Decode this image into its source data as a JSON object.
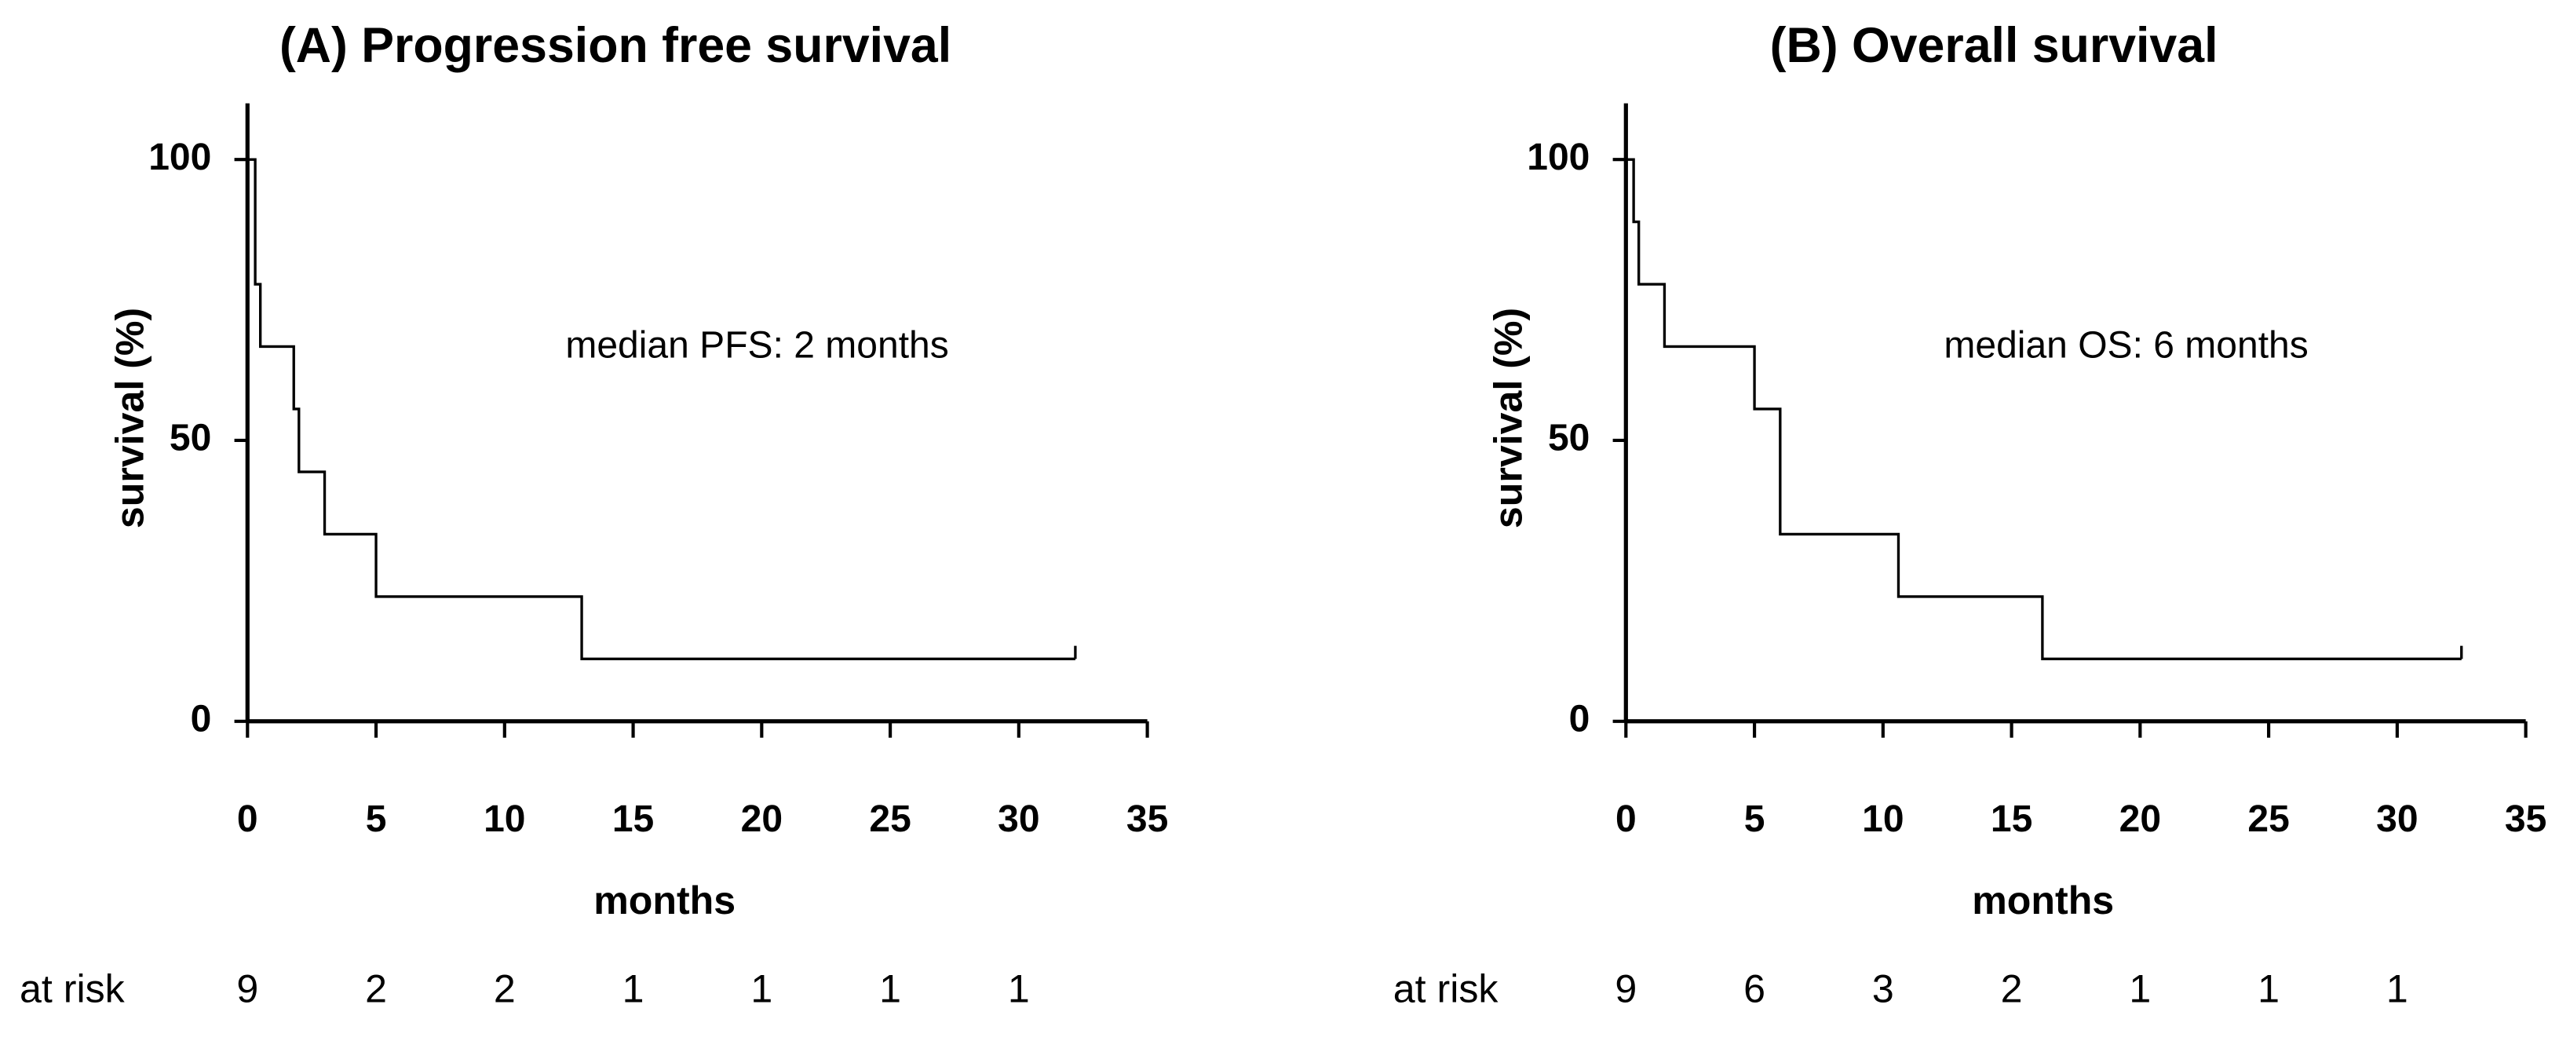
{
  "chart_data": [
    {
      "type": "step",
      "title": "(A) Progression free survival",
      "xlabel": "months",
      "ylabel": "survival (%)",
      "annotation": "median PFS: 2 months",
      "color": "#000000",
      "x": [
        0,
        0.3,
        0.5,
        1.8,
        2,
        3,
        5,
        13,
        32.2
      ],
      "values": [
        100,
        77.8,
        66.7,
        55.6,
        44.4,
        33.3,
        22.2,
        11.1,
        11.1
      ],
      "xlim": [
        0,
        35
      ],
      "xticks": [
        0,
        5,
        10,
        15,
        20,
        25,
        30,
        35
      ],
      "ylim": [
        0,
        110
      ],
      "yticks": [
        0,
        50,
        100
      ],
      "at_risk": {
        "label": "at risk",
        "values": [
          9,
          2,
          2,
          1,
          1,
          1,
          1
        ]
      }
    },
    {
      "type": "step",
      "title": "(B) Overall survival",
      "xlabel": "months",
      "ylabel": "survival (%)",
      "annotation": "median OS: 6 months",
      "color": "#000000",
      "x": [
        0,
        0.3,
        0.5,
        1.5,
        5,
        6,
        10.6,
        16.2,
        32.5
      ],
      "values": [
        100,
        88.9,
        77.8,
        66.7,
        55.6,
        33.3,
        22.2,
        11.1,
        11.1
      ],
      "xlim": [
        0,
        35
      ],
      "xticks": [
        0,
        5,
        10,
        15,
        20,
        25,
        30,
        35
      ],
      "ylim": [
        0,
        110
      ],
      "yticks": [
        0,
        50,
        100
      ],
      "at_risk": {
        "label": "at risk",
        "values": [
          9,
          6,
          3,
          2,
          1,
          1,
          1
        ]
      }
    }
  ]
}
